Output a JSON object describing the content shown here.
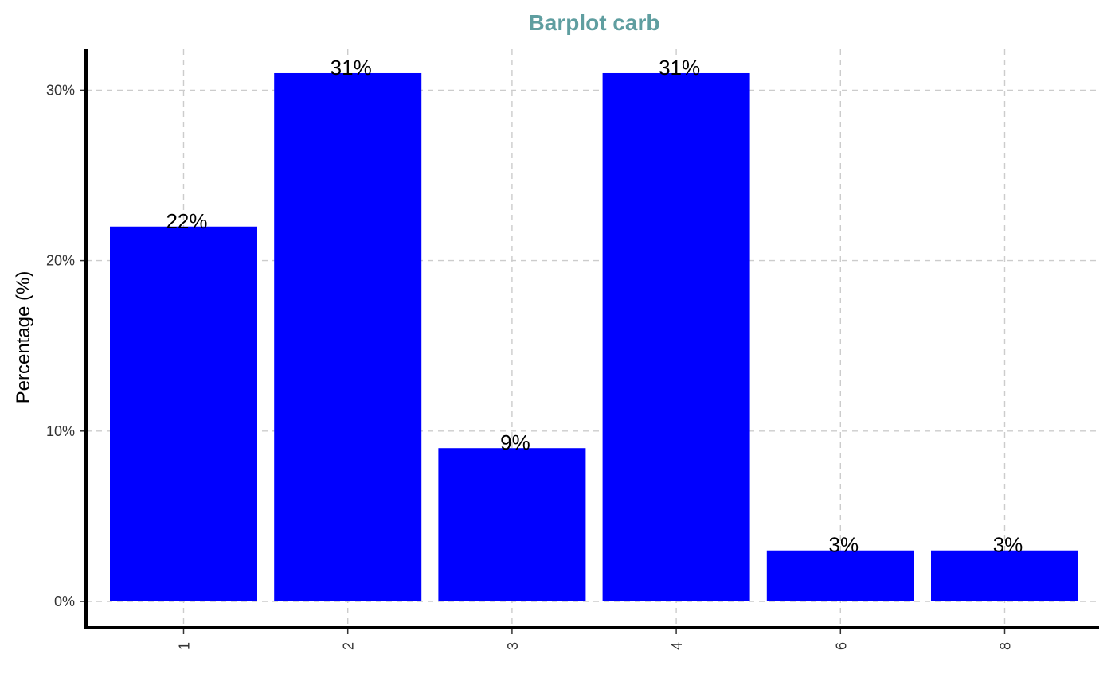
{
  "chart_data": {
    "type": "bar",
    "title": "Barplot carb",
    "xlabel": "",
    "ylabel": "Percentage (%)",
    "categories": [
      "1",
      "2",
      "3",
      "4",
      "6",
      "8"
    ],
    "values": [
      22,
      31,
      9,
      31,
      3,
      3
    ],
    "data_labels": [
      "22%",
      "31%",
      "9%",
      "31%",
      "3%",
      "3%"
    ],
    "yticks": [
      0,
      10,
      20,
      30
    ],
    "ytick_labels": [
      "0%",
      "10%",
      "20%",
      "30%"
    ],
    "ylim": [
      0,
      31
    ],
    "grid": true,
    "bar_color": "#0000ff",
    "title_color": "#5f9ea0"
  }
}
